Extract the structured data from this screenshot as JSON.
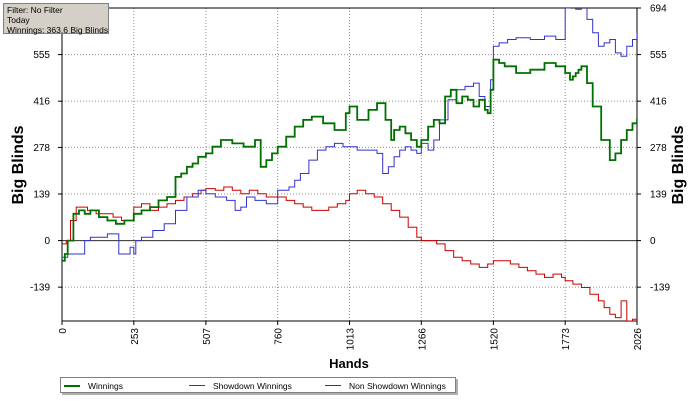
{
  "filter_box": {
    "filter": "Filter: No Filter",
    "period": "Today",
    "winnings": "Winnings: 363.6 Big Blinds"
  },
  "chart_data": {
    "type": "line",
    "xlabel": "Hands",
    "ylabel": "Big Blinds",
    "xlim": [
      0,
      2026
    ],
    "ylim": [
      -240,
      694
    ],
    "x_ticks": [
      0,
      253,
      507,
      760,
      1013,
      1266,
      1520,
      1773,
      2026
    ],
    "y_ticks": [
      -139,
      0,
      139,
      278,
      416,
      555,
      694
    ],
    "grid": true,
    "legend_position": "bottom-left",
    "series": [
      {
        "name": "Winnings",
        "color": "#007000",
        "x": [
          0,
          10,
          20,
          40,
          60,
          80,
          100,
          130,
          160,
          190,
          220,
          253,
          280,
          310,
          340,
          370,
          400,
          420,
          440,
          460,
          480,
          507,
          530,
          560,
          600,
          640,
          680,
          700,
          720,
          740,
          760,
          790,
          820,
          850,
          880,
          920,
          960,
          1000,
          1013,
          1040,
          1080,
          1110,
          1140,
          1160,
          1170,
          1190,
          1210,
          1230,
          1250,
          1266,
          1290,
          1310,
          1330,
          1350,
          1370,
          1390,
          1410,
          1430,
          1450,
          1470,
          1490,
          1500,
          1510,
          1520,
          1540,
          1560,
          1600,
          1650,
          1700,
          1740,
          1773,
          1790,
          1800,
          1810,
          1820,
          1830,
          1850,
          1870,
          1900,
          1930,
          1950,
          1970,
          1990,
          2010,
          2026
        ],
        "values": [
          -60,
          -40,
          0,
          80,
          90,
          80,
          90,
          70,
          60,
          50,
          60,
          80,
          90,
          100,
          120,
          130,
          190,
          200,
          220,
          230,
          250,
          260,
          280,
          300,
          290,
          280,
          300,
          220,
          240,
          260,
          280,
          310,
          340,
          360,
          370,
          350,
          330,
          380,
          400,
          360,
          390,
          410,
          360,
          300,
          330,
          340,
          320,
          300,
          280,
          300,
          340,
          360,
          350,
          430,
          450,
          410,
          430,
          420,
          400,
          420,
          390,
          380,
          450,
          540,
          530,
          520,
          500,
          510,
          530,
          520,
          500,
          480,
          490,
          500,
          510,
          520,
          470,
          400,
          300,
          240,
          260,
          300,
          330,
          350,
          364
        ]
      },
      {
        "name": "Showdown Winnings",
        "color": "#3333cc",
        "x": [
          0,
          20,
          40,
          80,
          100,
          130,
          160,
          200,
          240,
          253,
          260,
          280,
          320,
          360,
          400,
          440,
          480,
          507,
          540,
          580,
          610,
          630,
          650,
          680,
          720,
          760,
          780,
          800,
          820,
          840,
          870,
          900,
          930,
          960,
          990,
          1013,
          1040,
          1080,
          1110,
          1130,
          1150,
          1170,
          1190,
          1210,
          1230,
          1250,
          1266,
          1290,
          1310,
          1330,
          1360,
          1390,
          1420,
          1450,
          1470,
          1490,
          1510,
          1520,
          1540,
          1570,
          1600,
          1650,
          1700,
          1740,
          1773,
          1790,
          1810,
          1830,
          1850,
          1870,
          1890,
          1910,
          1930,
          1950,
          1970,
          1990,
          2010,
          2026
        ],
        "values": [
          -50,
          -40,
          -40,
          0,
          10,
          10,
          20,
          -40,
          -20,
          -40,
          0,
          10,
          30,
          50,
          90,
          130,
          150,
          140,
          130,
          120,
          90,
          100,
          130,
          120,
          110,
          150,
          150,
          160,
          180,
          200,
          240,
          270,
          280,
          290,
          280,
          280,
          270,
          270,
          260,
          200,
          220,
          250,
          270,
          280,
          270,
          260,
          290,
          270,
          300,
          360,
          420,
          450,
          460,
          470,
          430,
          400,
          480,
          580,
          590,
          600,
          605,
          600,
          610,
          600,
          694,
          700,
          690,
          700,
          660,
          620,
          580,
          590,
          600,
          560,
          550,
          580,
          600,
          620
        ]
      },
      {
        "name": "Non Showdown Winnings",
        "color": "#cc0000",
        "x": [
          0,
          15,
          30,
          50,
          70,
          90,
          120,
          150,
          180,
          210,
          253,
          280,
          310,
          340,
          370,
          400,
          430,
          460,
          490,
          507,
          540,
          570,
          600,
          630,
          660,
          690,
          720,
          760,
          790,
          820,
          850,
          880,
          910,
          940,
          970,
          1000,
          1013,
          1040,
          1070,
          1100,
          1130,
          1160,
          1190,
          1220,
          1250,
          1266,
          1290,
          1320,
          1350,
          1380,
          1410,
          1440,
          1470,
          1500,
          1520,
          1550,
          1580,
          1610,
          1640,
          1670,
          1700,
          1730,
          1760,
          1773,
          1800,
          1830,
          1860,
          1890,
          1910,
          1930,
          1950,
          1970,
          1990,
          2010,
          2026
        ],
        "values": [
          -10,
          0,
          60,
          100,
          100,
          90,
          80,
          80,
          70,
          60,
          100,
          110,
          90,
          100,
          110,
          120,
          130,
          140,
          150,
          155,
          150,
          160,
          150,
          140,
          150,
          140,
          130,
          130,
          120,
          110,
          100,
          90,
          90,
          100,
          110,
          120,
          140,
          150,
          140,
          130,
          110,
          90,
          70,
          40,
          10,
          0,
          0,
          -10,
          -30,
          -50,
          -60,
          -70,
          -80,
          -70,
          -60,
          -60,
          -70,
          -80,
          -90,
          -100,
          -110,
          -100,
          -110,
          -120,
          -130,
          -140,
          -160,
          -180,
          -200,
          -220,
          -230,
          -180,
          -240,
          -235,
          -240
        ]
      }
    ]
  }
}
